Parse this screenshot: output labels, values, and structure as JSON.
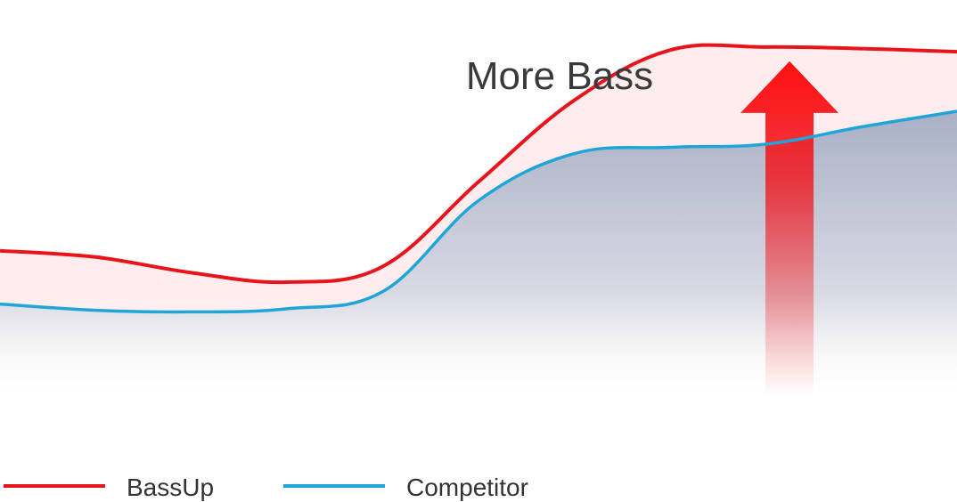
{
  "chart_data": {
    "type": "area",
    "x": [
      0,
      2,
      4,
      6,
      8,
      10,
      12,
      14,
      16,
      18,
      20
    ],
    "series": [
      {
        "name": "BassUp",
        "color": "#e8141b",
        "fill_color": "#f9a3a6",
        "values": [
          0.35,
          0.33,
          0.28,
          0.25,
          0.3,
          0.57,
          0.83,
          0.99,
          1.0,
          0.995,
          0.985
        ]
      },
      {
        "name": "Competitor",
        "color": "#20a5d8",
        "fill_color": "#b3b9cb",
        "values": [
          0.18,
          0.16,
          0.155,
          0.165,
          0.22,
          0.51,
          0.66,
          0.68,
          0.69,
          0.745,
          0.795
        ]
      }
    ],
    "annotation": {
      "text": "More Bass",
      "arrow_x": 16.5,
      "arrow_color": "#ff1010"
    },
    "legend": {
      "placement": "bottom-left"
    },
    "grid": false,
    "axes_visible": false,
    "ylim": [
      0,
      1.15
    ],
    "xlim": [
      0,
      20
    ]
  }
}
